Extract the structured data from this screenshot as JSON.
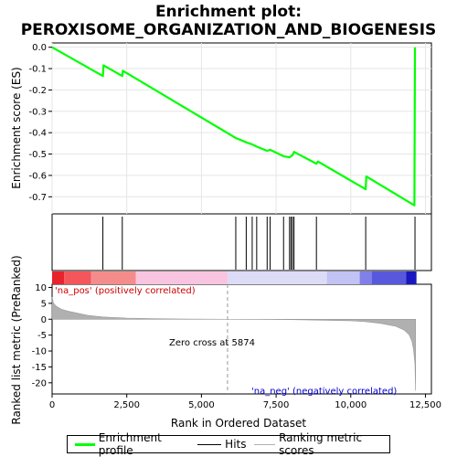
{
  "chart_data": {
    "type": "line",
    "title_lines": [
      "Enrichment plot:",
      "PEROXISOME_ORGANIZATION_AND_BIOGENESIS"
    ],
    "top_panel": {
      "ylabel": "Enrichment score (ES)",
      "ylim": [
        -0.78,
        0.02
      ],
      "yticks": [
        0.0,
        -0.1,
        -0.2,
        -0.3,
        -0.4,
        -0.5,
        -0.6,
        -0.7
      ],
      "ytick_labels": [
        "0.0",
        "-0.1",
        "-0.2",
        "-0.3",
        "-0.4",
        "-0.5",
        "-0.6",
        "-0.7"
      ],
      "series": [
        {
          "name": "Enrichment profile",
          "color": "#00ff00",
          "x": [
            0,
            1700,
            1720,
            2350,
            2370,
            6150,
            6500,
            6700,
            6850,
            7200,
            7300,
            7750,
            7950,
            8050,
            8100,
            8850,
            8900,
            10500,
            10520,
            12130,
            12150
          ],
          "y": [
            0.0,
            -0.135,
            -0.085,
            -0.135,
            -0.11,
            -0.425,
            -0.445,
            -0.455,
            -0.465,
            -0.485,
            -0.48,
            -0.51,
            -0.515,
            -0.505,
            -0.49,
            -0.545,
            -0.535,
            -0.665,
            -0.605,
            -0.74,
            0.0
          ]
        }
      ]
    },
    "hits": {
      "name": "Hits",
      "color": "#000000",
      "positions": [
        1700,
        2350,
        6150,
        6500,
        6700,
        6850,
        7200,
        7300,
        7750,
        7950,
        8000,
        8050,
        8100,
        8850,
        10500,
        12150
      ]
    },
    "color_bar": {
      "segments": [
        {
          "start": 0,
          "end": 400,
          "color": "#e8232b"
        },
        {
          "start": 400,
          "end": 1300,
          "color": "#f4565b"
        },
        {
          "start": 1300,
          "end": 2800,
          "color": "#f58c8c"
        },
        {
          "start": 2800,
          "end": 5874,
          "color": "#f9c4df"
        },
        {
          "start": 5874,
          "end": 9200,
          "color": "#dcdcf7"
        },
        {
          "start": 9200,
          "end": 10300,
          "color": "#c2c2f4"
        },
        {
          "start": 10300,
          "end": 10700,
          "color": "#8080e8"
        },
        {
          "start": 10700,
          "end": 11850,
          "color": "#5858dc"
        },
        {
          "start": 11850,
          "end": 12200,
          "color": "#1818c0"
        }
      ]
    },
    "bottom_panel": {
      "name": "Ranking metric scores",
      "color": "#b0b0b0",
      "ylabel": "Ranked list metric (PreRanked)",
      "xlabel": "Rank in Ordered Dataset",
      "ylim": [
        -23.5,
        11
      ],
      "yticks": [
        10,
        5,
        0,
        -5,
        -10,
        -15,
        -20
      ],
      "ytick_labels": [
        "10",
        "5",
        "0",
        "-5",
        "-10",
        "-15",
        "-20"
      ],
      "xlim": [
        0,
        12700
      ],
      "xticks": [
        0,
        2500,
        5000,
        7500,
        10000,
        12500
      ],
      "xtick_labels": [
        "0",
        "2,500",
        "5,000",
        "7,500",
        "10,000",
        "12,500"
      ],
      "x": [
        0,
        50,
        150,
        300,
        500,
        800,
        1200,
        1700,
        2500,
        3500,
        4500,
        5874,
        7000,
        8000,
        9000,
        10000,
        10500,
        11000,
        11500,
        11800,
        11950,
        12050,
        12100,
        12150,
        12170
      ],
      "y": [
        7.0,
        5.0,
        4.0,
        3.2,
        2.6,
        2.0,
        1.2,
        0.7,
        0.35,
        0.15,
        0.05,
        0.0,
        -0.05,
        -0.12,
        -0.3,
        -0.5,
        -0.8,
        -1.3,
        -2.2,
        -3.5,
        -4.8,
        -7.0,
        -9.5,
        -14.0,
        -22.5
      ],
      "zero_cross_label": "Zero cross at 5874",
      "zero_cross": 5874,
      "pos_label": "'na_pos' (positively correlated)",
      "neg_label": "'na_neg' (negatively correlated)"
    },
    "legend": [
      "Enrichment profile",
      "Hits",
      "Ranking metric scores"
    ]
  }
}
